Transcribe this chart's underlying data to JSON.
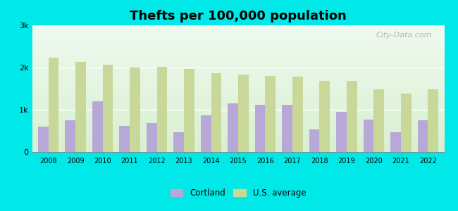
{
  "title": "Thefts per 100,000 population",
  "years": [
    2008,
    2009,
    2010,
    2011,
    2012,
    2013,
    2014,
    2015,
    2016,
    2017,
    2018,
    2019,
    2020,
    2021,
    2022
  ],
  "cortland": [
    600,
    750,
    1200,
    620,
    680,
    470,
    860,
    1150,
    1120,
    1120,
    540,
    950,
    760,
    460,
    750
  ],
  "us_average": [
    2230,
    2130,
    2070,
    2000,
    2010,
    1960,
    1870,
    1840,
    1800,
    1790,
    1680,
    1680,
    1480,
    1380,
    1480
  ],
  "cortland_color": "#b8a8d8",
  "us_avg_color": "#c8d898",
  "background_top": "#f0faf0",
  "background_bottom": "#d8f0d0",
  "outer_background": "#00e8e8",
  "ylim": [
    0,
    3000
  ],
  "yticks": [
    0,
    1000,
    2000,
    3000
  ],
  "ytick_labels": [
    "0",
    "1k",
    "2k",
    "3k"
  ],
  "bar_width": 0.38,
  "legend_cortland": "Cortland",
  "legend_us": "U.S. average",
  "title_fontsize": 13,
  "watermark": "City-Data.com"
}
